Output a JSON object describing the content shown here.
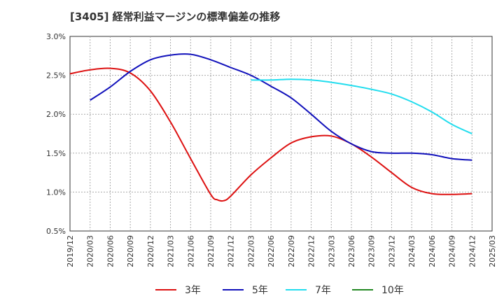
{
  "chart_data": {
    "type": "line",
    "title": "[3405]  経常利益マージンの標準偏差の推移",
    "xlabel": "",
    "ylabel": "",
    "x_ticks": [
      "2019/12",
      "2020/03",
      "2020/06",
      "2020/09",
      "2020/12",
      "2021/03",
      "2021/06",
      "2021/09",
      "2021/12",
      "2022/03",
      "2022/06",
      "2022/09",
      "2022/12",
      "2023/03",
      "2023/06",
      "2023/09",
      "2023/12",
      "2024/03",
      "2024/06",
      "2024/09",
      "2024/12",
      "2025/03"
    ],
    "ylim": [
      0.5,
      3.0
    ],
    "y_ticks": [
      0.5,
      1.0,
      1.5,
      2.0,
      2.5,
      3.0
    ],
    "y_tick_labels": [
      "0.5%",
      "1.0%",
      "1.5%",
      "2.0%",
      "2.5%",
      "3.0%"
    ],
    "grid": true,
    "legend_position": "bottom",
    "series": [
      {
        "name": "3年",
        "color": "#dd1111",
        "points": [
          [
            "2019/12",
            2.52
          ],
          [
            "2020/03",
            2.57
          ],
          [
            "2020/06",
            2.59
          ],
          [
            "2020/09",
            2.53
          ],
          [
            "2020/12",
            2.3
          ],
          [
            "2021/03",
            1.9
          ],
          [
            "2021/06",
            1.43
          ],
          [
            "2021/09",
            0.97
          ],
          [
            "2021/10",
            0.9
          ],
          [
            "2021/11",
            0.89
          ],
          [
            "2021/12",
            0.95
          ],
          [
            "2022/03",
            1.22
          ],
          [
            "2022/06",
            1.44
          ],
          [
            "2022/09",
            1.63
          ],
          [
            "2022/12",
            1.71
          ],
          [
            "2023/03",
            1.72
          ],
          [
            "2023/06",
            1.62
          ],
          [
            "2023/09",
            1.45
          ],
          [
            "2023/12",
            1.25
          ],
          [
            "2024/03",
            1.06
          ],
          [
            "2024/06",
            0.98
          ],
          [
            "2024/09",
            0.97
          ],
          [
            "2024/12",
            0.98
          ]
        ]
      },
      {
        "name": "5年",
        "color": "#1111bb",
        "points": [
          [
            "2020/03",
            2.18
          ],
          [
            "2020/06",
            2.35
          ],
          [
            "2020/09",
            2.55
          ],
          [
            "2020/12",
            2.7
          ],
          [
            "2021/03",
            2.76
          ],
          [
            "2021/06",
            2.77
          ],
          [
            "2021/09",
            2.7
          ],
          [
            "2021/12",
            2.6
          ],
          [
            "2022/03",
            2.5
          ],
          [
            "2022/06",
            2.36
          ],
          [
            "2022/09",
            2.21
          ],
          [
            "2022/12",
            2.0
          ],
          [
            "2023/03",
            1.78
          ],
          [
            "2023/06",
            1.62
          ],
          [
            "2023/09",
            1.52
          ],
          [
            "2023/12",
            1.5
          ],
          [
            "2024/03",
            1.5
          ],
          [
            "2024/06",
            1.48
          ],
          [
            "2024/09",
            1.43
          ],
          [
            "2024/12",
            1.41
          ]
        ]
      },
      {
        "name": "7年",
        "color": "#22ddee",
        "points": [
          [
            "2022/03",
            2.44
          ],
          [
            "2022/06",
            2.44
          ],
          [
            "2022/09",
            2.45
          ],
          [
            "2022/12",
            2.44
          ],
          [
            "2023/03",
            2.41
          ],
          [
            "2023/06",
            2.37
          ],
          [
            "2023/09",
            2.32
          ],
          [
            "2023/12",
            2.26
          ],
          [
            "2024/03",
            2.16
          ],
          [
            "2024/06",
            2.03
          ],
          [
            "2024/09",
            1.87
          ],
          [
            "2024/12",
            1.75
          ]
        ]
      },
      {
        "name": "10年",
        "color": "#228822",
        "points": []
      }
    ]
  }
}
